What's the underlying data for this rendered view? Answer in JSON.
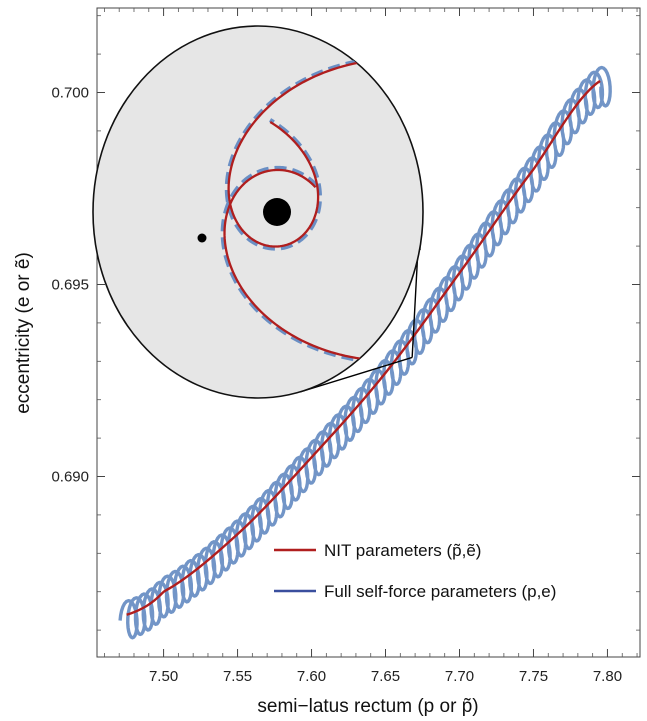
{
  "chart_data": {
    "type": "line",
    "xlabel": "semi−latus rectum  (p or p̃)",
    "ylabel": "eccentricity  (e or ẽ)",
    "xlim": [
      7.455,
      7.822
    ],
    "ylim": [
      0.6853,
      0.7022
    ],
    "xticks": [
      7.5,
      7.55,
      7.6,
      7.65,
      7.7,
      7.75,
      7.8
    ],
    "xtick_labels": [
      "7.50",
      "7.55",
      "7.60",
      "7.65",
      "7.70",
      "7.75",
      "7.80"
    ],
    "yticks": [
      0.69,
      0.695,
      0.7
    ],
    "ytick_labels": [
      "0.690",
      "0.695",
      "0.700"
    ],
    "grid": false,
    "legend_position": "bottom-right",
    "series": [
      {
        "name": "NIT parameters (p̃,ẽ)",
        "color": "#b01e1e",
        "style": "smooth",
        "x": [
          7.475,
          7.5,
          7.55,
          7.6,
          7.65,
          7.7,
          7.75,
          7.795
        ],
        "y": [
          0.6864,
          0.687,
          0.6885,
          0.6905,
          0.6927,
          0.6953,
          0.698,
          0.7003
        ]
      },
      {
        "name": "Full self-force parameters (p,e)",
        "color": "#6a8fc4",
        "style": "oscillating",
        "x_start": 7.475,
        "x_end": 7.8,
        "oscillation_count": 62,
        "oscillation_amplitude_x": 0.008,
        "oscillation_amplitude_y": 0.0005
      }
    ],
    "inset": {
      "description": "orbit trajectories in space",
      "series": [
        {
          "name": "NIT orbit",
          "color": "#b01e1e",
          "style": "solid"
        },
        {
          "name": "self-force orbit",
          "color": "#6a8fc4",
          "style": "dashed"
        }
      ],
      "zoom_point": {
        "x": 7.668,
        "y": 0.6931
      }
    }
  }
}
